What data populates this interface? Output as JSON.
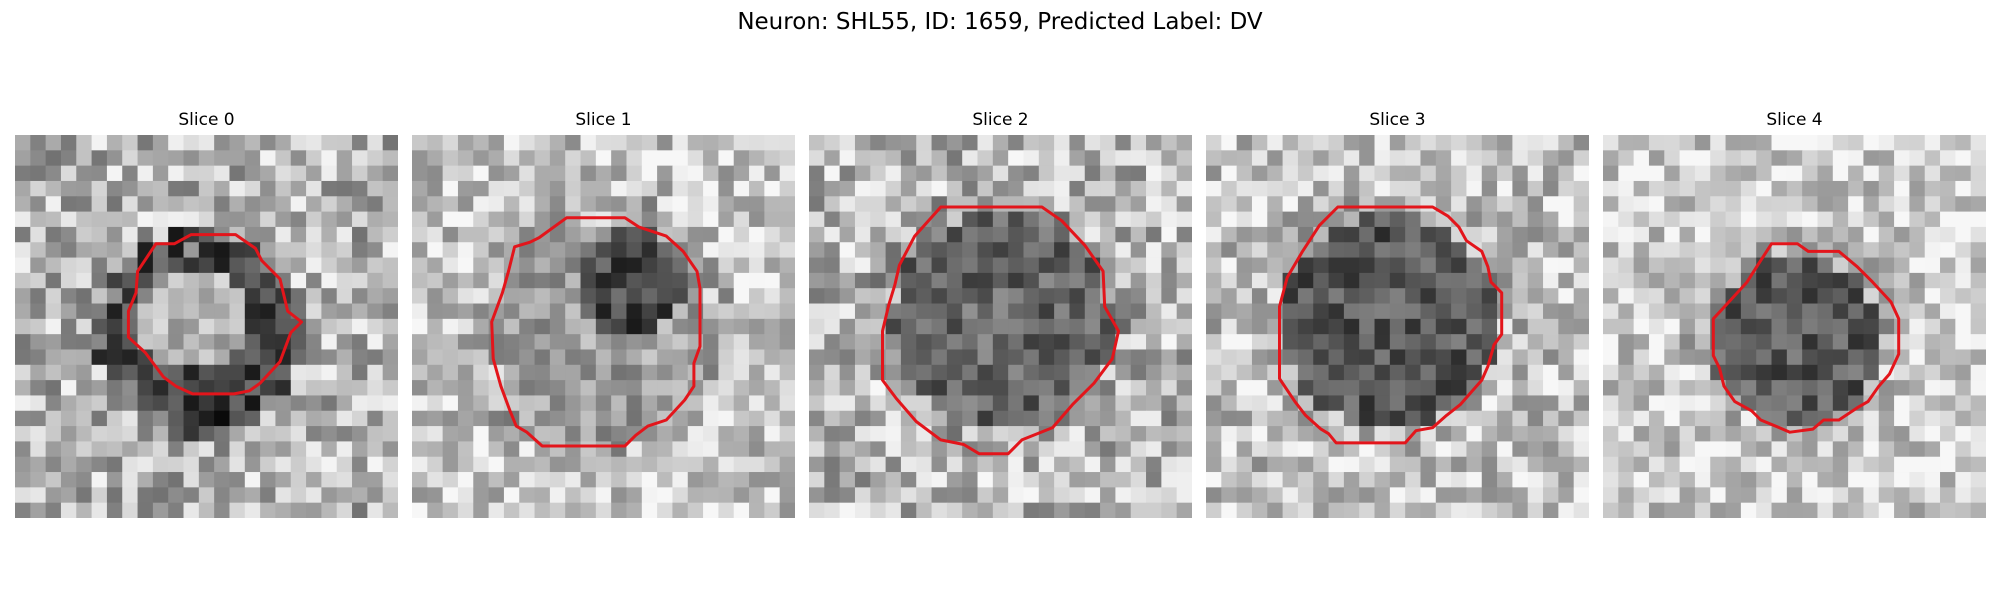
{
  "figure": {
    "title": "Neuron: SHL55, ID: 1659, Predicted Label: DV"
  },
  "colors": {
    "contour": "#e3151b",
    "background": "#ffffff"
  },
  "panels": [
    {
      "title": "Slice 0",
      "image": "grayscale cell patch with contour around lighter center"
    },
    {
      "title": "Slice 1",
      "image": "grayscale cell patch with dark upper-right region inside contour"
    },
    {
      "title": "Slice 2",
      "image": "grayscale cell patch with dark filled cell inside contour"
    },
    {
      "title": "Slice 3",
      "image": "grayscale cell patch with dark filled cell inside contour"
    },
    {
      "title": "Slice 4",
      "image": "grayscale cell patch with small dark cell inside contour"
    }
  ]
}
